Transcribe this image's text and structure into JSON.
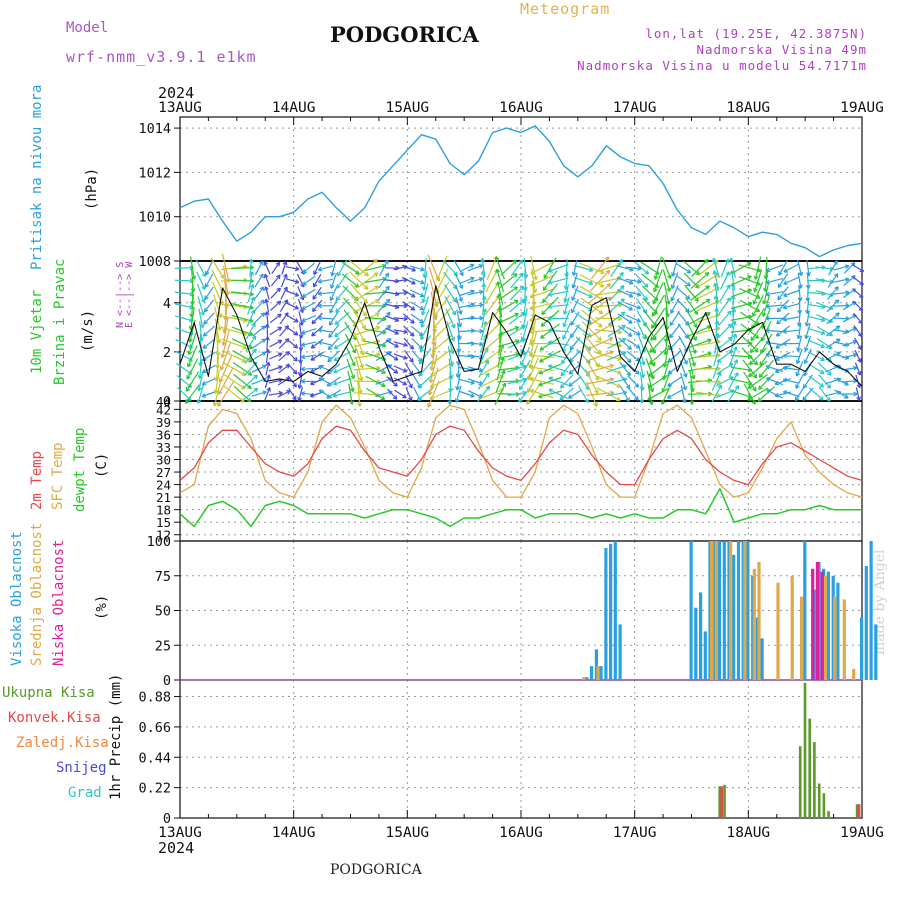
{
  "header": {
    "model_label": "Model",
    "model_version": "wrf-nmm_v3.9.1 e1km",
    "city": "PODGORICA",
    "meteogram_label": "Meteogram",
    "lonlat": "lon,lat (19.25E, 42.3875N)",
    "elevation": "Nadmorska Visina 49m",
    "model_elevation": "Nadmorska Visina u modelu 54.7171m",
    "year_top": "2024",
    "year_bottom": "2024",
    "footer_city": "PODGORICA",
    "credit": "made by Angel"
  },
  "colors": {
    "pressure": "#2aa0e0",
    "temp2m": "#e84848",
    "sfc_temp": "#e0a848",
    "dewpt": "#28c828",
    "cloud_high": "#2aa0e0",
    "cloud_mid": "#e0a848",
    "cloud_low": "#e0209a",
    "precip_total": "#5a9a28",
    "precip_conv": "#e84848",
    "precip_frozen": "#f08840",
    "snow": "#4848e0",
    "graupel": "#28c8c8",
    "wind_labels": "#28c828",
    "compass": "#b040c0"
  },
  "panels": {
    "pressure": {
      "label": "Pritisak na nivou mora",
      "unit": "(hPa)"
    },
    "wind": {
      "label1": "10m Vjetar",
      "label2": "Brzina i Pravac",
      "unit": "(m/s)",
      "compass_top": "N <--|--> S",
      "compass_bottom": "E <--|--> W"
    },
    "temp": {
      "label1": "2m Temp",
      "label2": "SFC Temp",
      "label3": "dewpt Temp",
      "unit": "(C)"
    },
    "cloud": {
      "label1": "Visoka Oblacnost",
      "label2": "Srednja Oblacnost",
      "label3": "Niska Oblacnost",
      "unit": "(%)"
    },
    "precip": {
      "unit": "1hr Precip (mm)",
      "legend": [
        "Ukupna Kisa",
        "Konvek.Kisa",
        "Zaledj.Kisa",
        "Snijeg",
        "Grad"
      ]
    }
  },
  "chart_data": [
    {
      "type": "line",
      "title": "Pritisak na nivou mora",
      "ylabel": "(hPa)",
      "x_ticks": [
        "13AUG",
        "14AUG",
        "15AUG",
        "16AUG",
        "17AUG",
        "18AUG",
        "19AUG"
      ],
      "x_unit": "hours from 13AUG 00",
      "ylim": [
        1008,
        1014.5
      ],
      "yticks": [
        1008,
        1010,
        1012,
        1014
      ],
      "series": [
        {
          "name": "Pritisak na nivou mora",
          "x": [
            0,
            3,
            6,
            9,
            12,
            15,
            18,
            21,
            24,
            27,
            30,
            33,
            36,
            39,
            42,
            45,
            48,
            51,
            54,
            57,
            60,
            63,
            66,
            69,
            72,
            75,
            78,
            81,
            84,
            87,
            90,
            93,
            96,
            99,
            102,
            105,
            108,
            111,
            114,
            117,
            120,
            123,
            126,
            129,
            132,
            135,
            138,
            141,
            144
          ],
          "values": [
            1010.4,
            1010.7,
            1010.8,
            1009.8,
            1008.9,
            1009.3,
            1010.0,
            1010.0,
            1010.2,
            1010.8,
            1011.1,
            1010.4,
            1009.8,
            1010.4,
            1011.6,
            1012.3,
            1013.0,
            1013.7,
            1013.5,
            1012.4,
            1011.9,
            1012.5,
            1013.8,
            1014.0,
            1013.8,
            1014.1,
            1013.4,
            1012.3,
            1011.8,
            1012.3,
            1013.2,
            1012.7,
            1012.4,
            1012.3,
            1011.5,
            1010.3,
            1009.5,
            1009.2,
            1009.8,
            1009.5,
            1009.1,
            1009.3,
            1009.2,
            1008.8,
            1008.6,
            1008.2,
            1008.5,
            1008.7,
            1008.8
          ]
        }
      ]
    },
    {
      "type": "line",
      "title": "10m Vjetar Brzina i Pravac",
      "ylabel": "(m/s)",
      "ylim": [
        0,
        5.7
      ],
      "yticks": [
        0,
        2,
        4
      ],
      "series": [
        {
          "name": "10m wind speed",
          "x": [
            0,
            3,
            6,
            9,
            12,
            15,
            18,
            21,
            24,
            27,
            30,
            33,
            36,
            39,
            42,
            45,
            48,
            51,
            54,
            57,
            60,
            63,
            66,
            69,
            72,
            75,
            78,
            81,
            84,
            87,
            90,
            93,
            96,
            99,
            102,
            105,
            108,
            111,
            114,
            117,
            120,
            123,
            126,
            129,
            132,
            135,
            138,
            141,
            144
          ],
          "values": [
            1.5,
            3.2,
            1.0,
            4.6,
            3.5,
            1.8,
            0.8,
            0.9,
            0.8,
            1.2,
            1.0,
            1.5,
            2.5,
            4.0,
            2.2,
            0.8,
            1.0,
            1.2,
            4.7,
            2.5,
            1.2,
            1.3,
            3.6,
            2.8,
            1.8,
            3.5,
            3.2,
            2.0,
            1.1,
            3.9,
            4.2,
            1.8,
            1.2,
            2.6,
            3.4,
            1.2,
            2.5,
            3.6,
            2.0,
            2.3,
            2.9,
            3.2,
            1.5,
            1.5,
            1.2,
            2.0,
            1.5,
            1.2,
            0.6
          ]
        }
      ]
    },
    {
      "type": "line",
      "title": "2m Temp / SFC Temp / dewpt Temp",
      "ylabel": "(C)",
      "ylim": [
        10.5,
        44
      ],
      "yticks": [
        12,
        15,
        18,
        21,
        24,
        27,
        30,
        33,
        36,
        39,
        42,
        44
      ],
      "series": [
        {
          "name": "2m Temp",
          "x": [
            0,
            3,
            6,
            9,
            12,
            15,
            18,
            21,
            24,
            27,
            30,
            33,
            36,
            39,
            42,
            45,
            48,
            51,
            54,
            57,
            60,
            63,
            66,
            69,
            72,
            75,
            78,
            81,
            84,
            87,
            90,
            93,
            96,
            99,
            102,
            105,
            108,
            111,
            114,
            117,
            120,
            123,
            126,
            129,
            132,
            135,
            138,
            141,
            144
          ],
          "values": [
            25,
            28,
            34,
            37,
            37,
            33,
            29,
            27,
            26,
            29,
            35,
            38,
            37,
            32,
            28,
            27,
            26,
            30,
            36,
            38,
            37,
            32,
            28,
            26,
            25,
            29,
            34,
            37,
            36,
            31,
            27,
            24,
            24,
            30,
            35,
            37,
            35,
            30,
            27,
            25,
            24,
            29,
            33,
            34,
            32,
            30,
            28,
            26,
            25
          ]
        },
        {
          "name": "SFC Temp",
          "x": [
            0,
            3,
            6,
            9,
            12,
            15,
            18,
            21,
            24,
            27,
            30,
            33,
            36,
            39,
            42,
            45,
            48,
            51,
            54,
            57,
            60,
            63,
            66,
            69,
            72,
            75,
            78,
            81,
            84,
            87,
            90,
            93,
            96,
            99,
            102,
            105,
            108,
            111,
            114,
            117,
            120,
            123,
            126,
            129,
            132,
            135,
            138,
            141,
            144
          ],
          "values": [
            22,
            24,
            38,
            42,
            41,
            35,
            25,
            22,
            21,
            27,
            39,
            43,
            40,
            33,
            25,
            22,
            21,
            28,
            40,
            43,
            42,
            34,
            25,
            21,
            21,
            27,
            40,
            43,
            41,
            33,
            24,
            21,
            21,
            30,
            41,
            43,
            40,
            32,
            24,
            21,
            22,
            28,
            35,
            39,
            31,
            27,
            24,
            22,
            21
          ]
        },
        {
          "name": "dewpt Temp",
          "x": [
            0,
            3,
            6,
            9,
            12,
            15,
            18,
            21,
            24,
            27,
            30,
            33,
            36,
            39,
            42,
            45,
            48,
            51,
            54,
            57,
            60,
            63,
            66,
            69,
            72,
            75,
            78,
            81,
            84,
            87,
            90,
            93,
            96,
            99,
            102,
            105,
            108,
            111,
            114,
            117,
            120,
            123,
            126,
            129,
            132,
            135,
            138,
            141,
            144
          ],
          "values": [
            17,
            14,
            19,
            20,
            18,
            14,
            19,
            20,
            19,
            17,
            17,
            17,
            17,
            16,
            17,
            18,
            18,
            17,
            16,
            14,
            16,
            16,
            17,
            18,
            18,
            16,
            17,
            17,
            17,
            16,
            17,
            16,
            17,
            16,
            16,
            18,
            18,
            17,
            23,
            15,
            16,
            17,
            17,
            18,
            18,
            19,
            18,
            18,
            18
          ]
        }
      ]
    },
    {
      "type": "bar",
      "title": "Visoka / Srednja / Niska Oblacnost",
      "ylabel": "(%)",
      "ylim": [
        0,
        100
      ],
      "yticks": [
        0,
        25,
        50,
        75,
        100
      ],
      "series": [
        {
          "name": "Visoka Oblacnost",
          "x": [
            86,
            87,
            88,
            89,
            90,
            91,
            92,
            93,
            108,
            109,
            110,
            111,
            112,
            113,
            114,
            115,
            116,
            117,
            118,
            119,
            120,
            121,
            122,
            123,
            132,
            134,
            135,
            136,
            137,
            138,
            139,
            144,
            145,
            146,
            147
          ],
          "values": [
            2,
            10,
            22,
            10,
            95,
            98,
            100,
            40,
            100,
            52,
            63,
            35,
            100,
            100,
            100,
            100,
            100,
            90,
            100,
            100,
            100,
            75,
            45,
            30,
            100,
            65,
            85,
            80,
            78,
            75,
            70,
            45,
            82,
            100,
            40
          ]
        },
        {
          "name": "Srednja Oblacnost",
          "x": [
            85,
            88,
            112,
            113,
            116,
            119,
            121,
            122,
            126,
            129,
            131,
            136,
            138,
            140,
            142
          ],
          "values": [
            2,
            10,
            100,
            100,
            100,
            100,
            80,
            85,
            70,
            75,
            60,
            75,
            60,
            58,
            8
          ]
        },
        {
          "name": "Niska Oblacnost",
          "x": [
            133,
            134,
            135
          ],
          "values": [
            80,
            85,
            78
          ]
        }
      ]
    },
    {
      "type": "bar",
      "title": "1hr Precip",
      "ylabel": "1hr Precip (mm)",
      "ylim": [
        0,
        1.0
      ],
      "yticks": [
        0,
        0.22,
        0.44,
        0.66,
        0.88
      ],
      "series": [
        {
          "name": "Ukupna Kisa",
          "x": [
            114,
            115,
            131,
            132,
            133,
            134,
            135,
            136,
            137,
            143
          ],
          "values": [
            0.23,
            0.24,
            0.52,
            0.98,
            0.72,
            0.55,
            0.25,
            0.18,
            0.05,
            0.1
          ]
        },
        {
          "name": "Konvek.Kisa",
          "x": [
            114,
            143
          ],
          "values": [
            0.23,
            0.1
          ]
        }
      ]
    }
  ]
}
